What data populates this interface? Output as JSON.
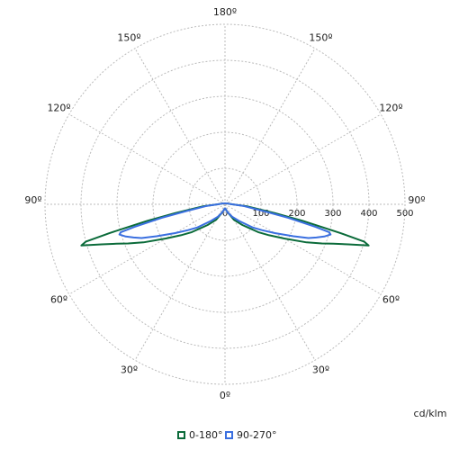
{
  "chart_data": {
    "type": "polar",
    "unit": "cd/klm",
    "rlim": [
      0,
      500
    ],
    "rticks": [
      0,
      100,
      200,
      300,
      400,
      500
    ],
    "angle_ticks": [
      {
        "value": 0,
        "label": "0º"
      },
      {
        "value": 30,
        "label": "30º"
      },
      {
        "value": 60,
        "label": "60º"
      },
      {
        "value": 90,
        "label": "90º"
      },
      {
        "value": 120,
        "label": "120º"
      },
      {
        "value": 150,
        "label": "150º"
      },
      {
        "value": 180,
        "label": "180º"
      }
    ],
    "grid": true,
    "x": [
      0,
      10,
      20,
      30,
      40,
      50,
      55,
      60,
      65,
      68,
      70,
      72,
      74,
      75,
      76,
      78,
      80,
      85,
      90,
      100,
      120,
      150,
      180
    ],
    "series": [
      {
        "name": "0-180°",
        "color": "#0b6b3a",
        "values": [
          10,
          15,
          25,
          50,
          75,
          120,
          150,
          190,
          250,
          290,
          320,
          360,
          415,
          400,
          330,
          220,
          140,
          60,
          20,
          10,
          5,
          3,
          3
        ]
      },
      {
        "name": "90-270°",
        "color": "#3a6fe0",
        "values": [
          10,
          15,
          25,
          40,
          60,
          100,
          125,
          160,
          210,
          250,
          270,
          290,
          305,
          300,
          260,
          180,
          110,
          50,
          20,
          10,
          5,
          3,
          3
        ]
      }
    ]
  }
}
